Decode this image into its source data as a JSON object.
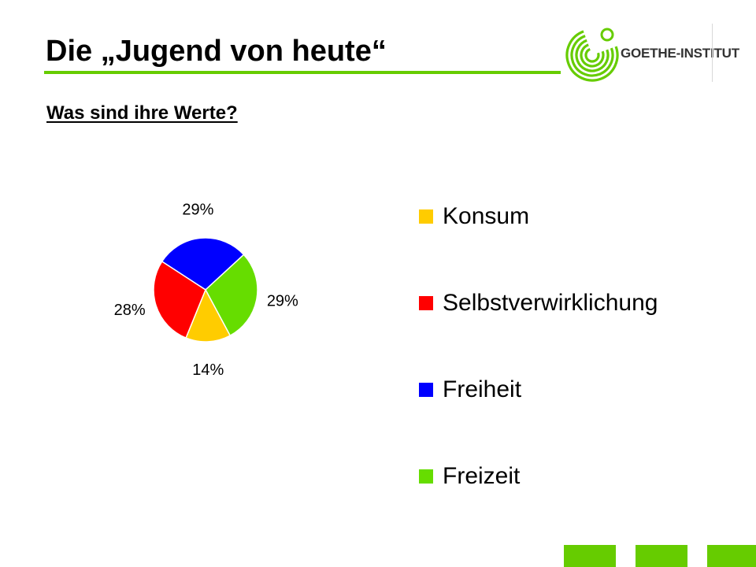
{
  "slide": {
    "title": "Die „Jugend von heute“",
    "subtitle": "Was sind ihre Werte?"
  },
  "logo": {
    "text": "GOETHE-INSTITUT",
    "icon": "goethe-institut-logo-icon",
    "color": "#66CC00"
  },
  "colors": {
    "accent_green": "#66CC00",
    "konsum": "#FFCC00",
    "selbstverwirklichung": "#FF0000",
    "freiheit": "#0000FF",
    "freizeit": "#66DD00"
  },
  "chart_data": {
    "type": "pie",
    "title": "",
    "slices": [
      {
        "label": "Konsum",
        "value": 14,
        "display": "14%",
        "color": "#FFCC00"
      },
      {
        "label": "Selbstverwirklichung",
        "value": 28,
        "display": "28%",
        "color": "#FF0000"
      },
      {
        "label": "Freiheit",
        "value": 29,
        "display": "29%",
        "color": "#0000FF"
      },
      {
        "label": "Freizeit",
        "value": 29,
        "display": "29%",
        "color": "#66DD00"
      }
    ],
    "legend_placement": "right",
    "data_labels": "outside"
  },
  "footer": {
    "blocks_color": "#66CC00",
    "block_count": 3
  }
}
